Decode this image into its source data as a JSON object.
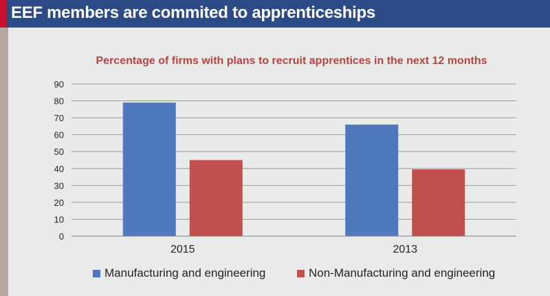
{
  "header": {
    "title": "EEF members are commited to apprenticeships"
  },
  "colors": {
    "header_bg": "#2c4a86",
    "accent": "#c8102e",
    "series_1": "#4f78bd",
    "series_2": "#c0504d",
    "subtitle": "#b5453f"
  },
  "chart_data": {
    "type": "bar",
    "title": "Percentage of firms with plans to recruit apprentices in the next 12 months",
    "xlabel": "",
    "ylabel": "",
    "categories": [
      "2015",
      "2013"
    ],
    "series": [
      {
        "name": "Manufacturing and engineering",
        "values": [
          79,
          66
        ]
      },
      {
        "name": "Non-Manufacturing and engineering",
        "values": [
          45,
          39.5
        ]
      }
    ],
    "ylim": [
      0,
      90
    ],
    "yticks": [
      "0",
      "10",
      "20",
      "30",
      "40",
      "50",
      "60",
      "70",
      "80",
      "90"
    ],
    "grid": true,
    "legend": "bottom"
  }
}
